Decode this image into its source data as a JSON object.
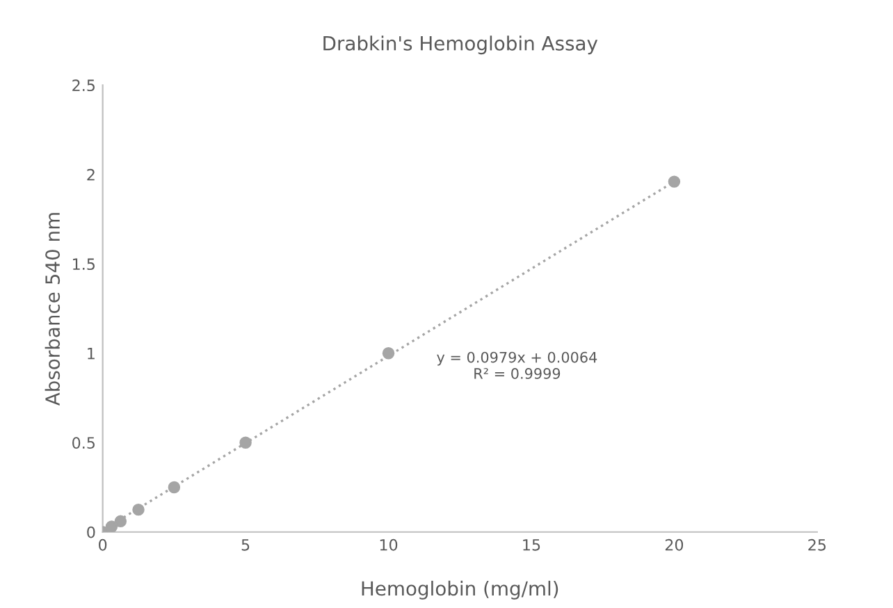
{
  "chart_data": {
    "type": "scatter",
    "title": "Drabkin's Hemoglobin Assay",
    "xlabel": "Hemoglobin (mg/ml)",
    "ylabel": "Absorbance 540 nm",
    "x": [
      0,
      0.3125,
      0.625,
      1.25,
      2.5,
      5,
      10,
      20
    ],
    "series": [
      {
        "color": "#a5a5a5",
        "marker": "circle",
        "values": [
          0,
          0.03,
          0.06,
          0.125,
          0.25,
          0.5,
          1.0,
          1.96
        ]
      },
      {
        "type": "line",
        "color": "#a5a5a5",
        "line_style": "dotted",
        "marker": "none",
        "x": [
          0,
          20
        ],
        "values": [
          0.01,
          1.96
        ]
      }
    ],
    "annotations": [
      "y = 0.0979x + 0.0064\nR² = 0.9999"
    ],
    "xlim": [
      0,
      25
    ],
    "xticks": [
      0,
      5,
      10,
      15,
      20,
      25
    ],
    "ylim": [
      0,
      2.5
    ],
    "yticks": [
      0,
      0.5,
      1,
      1.5,
      2,
      2.5
    ],
    "grid": false,
    "legend": false
  }
}
